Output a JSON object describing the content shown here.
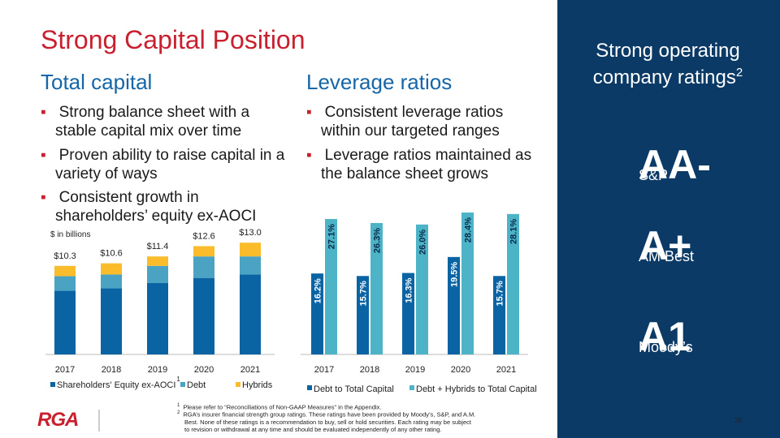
{
  "title": "Strong Capital Position",
  "sections": [
    {
      "heading": "Total capital",
      "bullets": [
        "Strong balance sheet with a stable capital mix over time",
        "Proven ability to raise capital in a variety of ways",
        "Consistent growth in shareholders’ equity ex-AOCI"
      ]
    },
    {
      "heading": "Leverage ratios",
      "bullets": [
        "Consistent leverage ratios within our targeted ranges",
        "Leverage ratios maintained as the balance sheet grows"
      ]
    }
  ],
  "chart_data": [
    {
      "type": "stacked-bar",
      "subtitle": "$ in billions",
      "categories": [
        "2017",
        "2018",
        "2019",
        "2020",
        "2021"
      ],
      "series": [
        {
          "name": "Shareholders' Equity ex-AOCI",
          "color": "#0a64a4",
          "values": [
            7.4,
            7.7,
            8.3,
            8.9,
            9.3
          ]
        },
        {
          "name": "Debt",
          "color": "#4ba3c3",
          "values": [
            1.7,
            1.6,
            2.0,
            2.5,
            2.1
          ]
        },
        {
          "name": "Hybrids",
          "color": "#fbbc2c",
          "values": [
            1.2,
            1.3,
            1.1,
            1.2,
            1.6
          ]
        }
      ],
      "total_labels": [
        "$10.3",
        "$10.6",
        "$11.4",
        "$12.6",
        "$13.0"
      ],
      "legend_note": "1"
    },
    {
      "type": "grouped-bar",
      "categories": [
        "2017",
        "2018",
        "2019",
        "2020",
        "2021"
      ],
      "series": [
        {
          "name": "Debt to Total Capital",
          "color": "#0a64a4",
          "values": [
            16.2,
            15.7,
            16.3,
            19.5,
            15.7
          ],
          "value_labels": [
            "16.2%",
            "15.7%",
            "16.3%",
            "19.5%",
            "15.7%"
          ]
        },
        {
          "name": "Debt + Hybrids to Total Capital",
          "color": "#4db3c6",
          "values": [
            27.1,
            26.3,
            26.0,
            28.4,
            28.1
          ],
          "value_labels": [
            "27.1%",
            "26.3%",
            "26.0%",
            "28.4%",
            "28.1%"
          ]
        }
      ]
    }
  ],
  "ratings": {
    "heading": "Strong operating company ratings",
    "heading_note": "2",
    "items": [
      {
        "rating": "AA-",
        "agency": "S&P"
      },
      {
        "rating": "A+",
        "agency": "AM Best"
      },
      {
        "rating": "A1",
        "agency": "Moody’s"
      }
    ]
  },
  "footnotes": [
    {
      "marker": "1",
      "text": "Please refer to “Reconciliations of Non-GAAP Measures” in the Appendix."
    },
    {
      "marker": "2",
      "text": "RGA’s insurer financial strength group ratings. These ratings have been provided by Moody’s, S&P, and A.M. Best.  None of these ratings is a recommendation to buy, sell or hold securities.  Each rating may be subject to revision or withdrawal at any time and should be evaluated independently of any other rating."
    }
  ],
  "logo": "RGA",
  "page_number": "26"
}
